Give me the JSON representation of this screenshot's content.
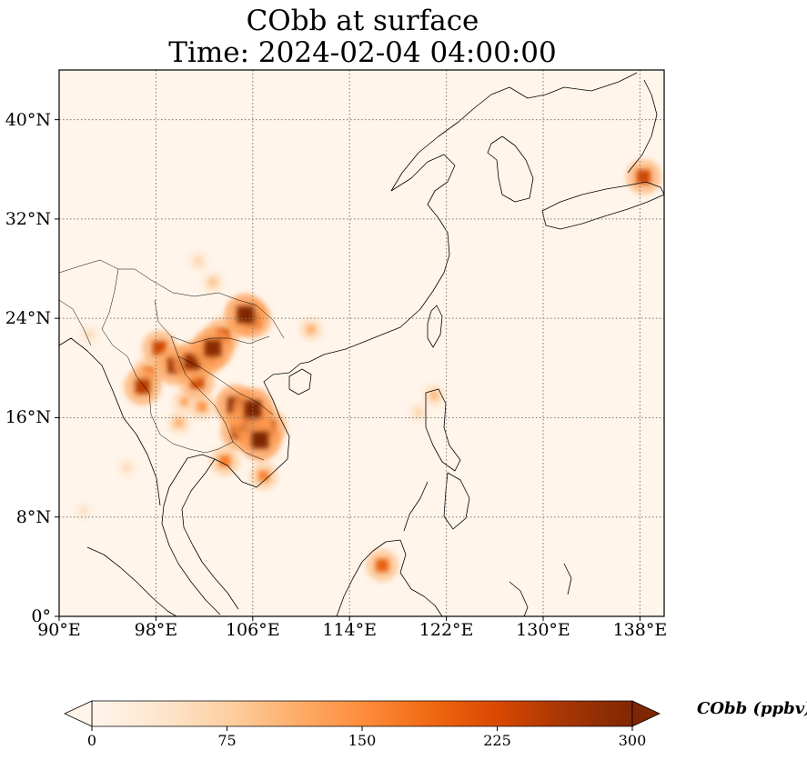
{
  "title": {
    "line1": "CObb at surface",
    "line2": "Time: 2024-02-04 04:00:00"
  },
  "map": {
    "lon_range": [
      90,
      140
    ],
    "lat_range": [
      0,
      44
    ],
    "lon_ticks": [
      {
        "value": 90,
        "label": "90°E"
      },
      {
        "value": 98,
        "label": "98°E"
      },
      {
        "value": 106,
        "label": "106°E"
      },
      {
        "value": 114,
        "label": "114°E"
      },
      {
        "value": 122,
        "label": "122°E"
      },
      {
        "value": 130,
        "label": "130°E"
      },
      {
        "value": 138,
        "label": "138°E"
      }
    ],
    "lat_ticks": [
      {
        "value": 0,
        "label": "0°"
      },
      {
        "value": 8,
        "label": "8°N"
      },
      {
        "value": 16,
        "label": "16°N"
      },
      {
        "value": 24,
        "label": "24°N"
      },
      {
        "value": 32,
        "label": "32°N"
      },
      {
        "value": 40,
        "label": "40°N"
      }
    ],
    "gridlines": true,
    "background_color": "#fff5eb",
    "hotspots": [
      {
        "lon": 105.9,
        "lat": 15.6,
        "value": 300
      },
      {
        "lon": 106.6,
        "lat": 14.2,
        "value": 300
      },
      {
        "lon": 104.6,
        "lat": 17.0,
        "value": 290
      },
      {
        "lon": 106.0,
        "lat": 16.7,
        "value": 300
      },
      {
        "lon": 104.9,
        "lat": 14.9,
        "value": 260
      },
      {
        "lon": 107.2,
        "lat": 15.2,
        "value": 260
      },
      {
        "lon": 105.4,
        "lat": 24.3,
        "value": 300
      },
      {
        "lon": 106.0,
        "lat": 23.9,
        "value": 250
      },
      {
        "lon": 102.7,
        "lat": 21.6,
        "value": 290
      },
      {
        "lon": 102.2,
        "lat": 21.0,
        "value": 260
      },
      {
        "lon": 103.5,
        "lat": 22.6,
        "value": 230
      },
      {
        "lon": 101.0,
        "lat": 20.5,
        "value": 280
      },
      {
        "lon": 101.4,
        "lat": 18.9,
        "value": 230
      },
      {
        "lon": 99.6,
        "lat": 20.2,
        "value": 270
      },
      {
        "lon": 98.3,
        "lat": 21.6,
        "value": 230
      },
      {
        "lon": 96.9,
        "lat": 18.5,
        "value": 250
      },
      {
        "lon": 97.4,
        "lat": 19.6,
        "value": 190
      },
      {
        "lon": 103.7,
        "lat": 12.5,
        "value": 170
      },
      {
        "lon": 106.9,
        "lat": 11.3,
        "value": 160
      },
      {
        "lon": 138.3,
        "lat": 35.4,
        "value": 230
      },
      {
        "lon": 116.7,
        "lat": 4.1,
        "value": 200
      },
      {
        "lon": 101.8,
        "lat": 16.9,
        "value": 140
      },
      {
        "lon": 100.4,
        "lat": 17.3,
        "value": 120
      },
      {
        "lon": 99.9,
        "lat": 15.6,
        "value": 110
      },
      {
        "lon": 101.5,
        "lat": 28.6,
        "value": 70
      },
      {
        "lon": 102.7,
        "lat": 26.9,
        "value": 90
      },
      {
        "lon": 121.0,
        "lat": 17.8,
        "value": 100
      },
      {
        "lon": 119.7,
        "lat": 16.4,
        "value": 70
      },
      {
        "lon": 110.8,
        "lat": 23.1,
        "value": 110
      },
      {
        "lon": 92.5,
        "lat": 22.7,
        "value": 60
      },
      {
        "lon": 92.0,
        "lat": 8.5,
        "value": 50
      },
      {
        "lon": 95.6,
        "lat": 12.0,
        "value": 60
      }
    ]
  },
  "colorbar": {
    "label": "CObb (ppbv)",
    "min": 0,
    "max": 300,
    "extend": "both",
    "stops": [
      "#fff5eb",
      "#fee6ce",
      "#fdd0a2",
      "#fdae6b",
      "#fd8d3c",
      "#f16913",
      "#d94801",
      "#a63603",
      "#7f2704"
    ],
    "ticks": [
      {
        "value": 0,
        "label": "0"
      },
      {
        "value": 75,
        "label": "75"
      },
      {
        "value": 150,
        "label": "150"
      },
      {
        "value": 225,
        "label": "225"
      },
      {
        "value": 300,
        "label": "300"
      }
    ]
  }
}
